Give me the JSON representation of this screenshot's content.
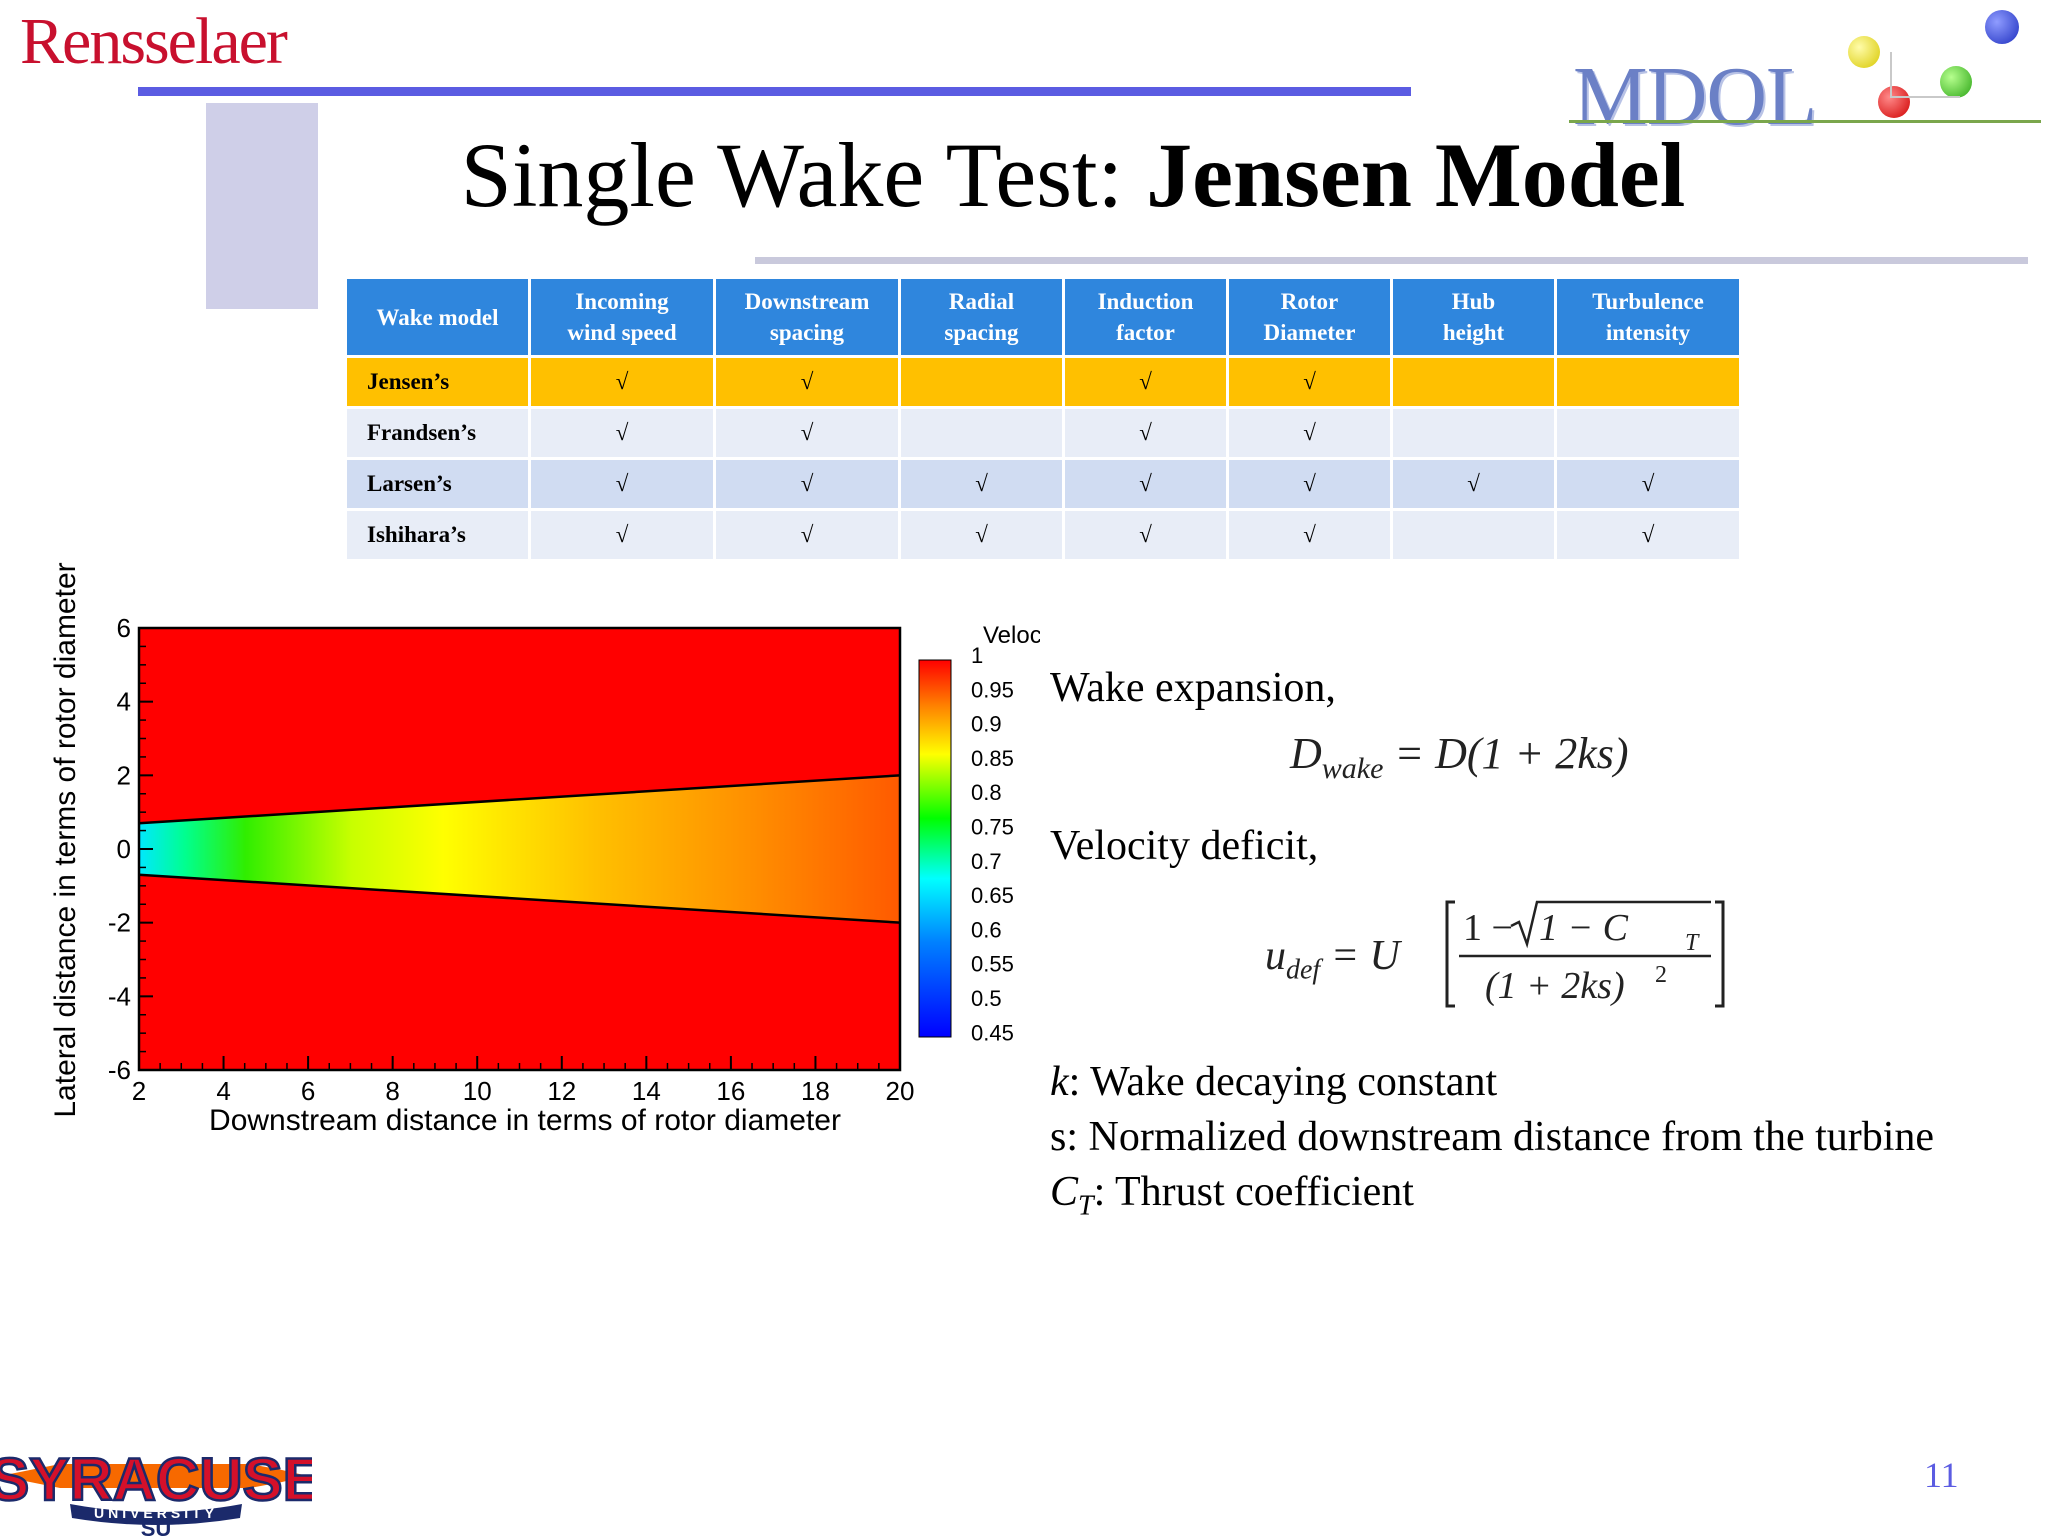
{
  "header": {
    "left_logo_text": "Rensselaer",
    "right_logo_text": "MDOL",
    "title_regular": "Single Wake Test: ",
    "title_bold": "Jensen Model"
  },
  "table": {
    "headers": [
      [
        "Wake model"
      ],
      [
        "Incoming",
        "wind speed"
      ],
      [
        "Downstream",
        "spacing"
      ],
      [
        "Radial",
        "spacing"
      ],
      [
        "Induction",
        "factor"
      ],
      [
        "Rotor",
        "Diameter"
      ],
      [
        "Hub",
        "height"
      ],
      [
        "Turbulence",
        "intensity"
      ]
    ],
    "rows": [
      {
        "model": "Jensen’s",
        "cells": [
          "√",
          "√",
          "",
          "√",
          "√",
          "",
          ""
        ]
      },
      {
        "model": "Frandsen’s",
        "cells": [
          "√",
          "√",
          "",
          "√",
          "√",
          "",
          ""
        ]
      },
      {
        "model": "Larsen’s",
        "cells": [
          "√",
          "√",
          "√",
          "√",
          "√",
          "√",
          "√"
        ]
      },
      {
        "model": "Ishihara’s",
        "cells": [
          "√",
          "√",
          "√",
          "√",
          "√",
          "",
          "√"
        ]
      }
    ]
  },
  "chart_data": {
    "type": "heatmap",
    "xlabel": "Downstream distance in terms of rotor diameter",
    "ylabel": "Lateral distance in terms of rotor diameter",
    "xlim": [
      2,
      20
    ],
    "ylim": [
      -6,
      6
    ],
    "x_ticks": [
      "2",
      "4",
      "6",
      "8",
      "10",
      "12",
      "14",
      "16",
      "18",
      "20"
    ],
    "y_ticks": [
      "6",
      "4",
      "2",
      "0",
      "-2",
      "-4",
      "-6"
    ],
    "colorbar_title": "Velocity",
    "colorbar_ticks": [
      "1",
      "0.95",
      "0.9",
      "0.85",
      "0.8",
      "0.75",
      "0.7",
      "0.65",
      "0.6",
      "0.55",
      "0.5",
      "0.45"
    ],
    "colorbar_range": [
      0.45,
      1
    ],
    "freestream_velocity": 1,
    "wake_boundary": {
      "x": [
        2,
        20
      ],
      "upper_y": [
        0.7,
        2.0
      ],
      "lower_y": [
        -0.7,
        -2.0
      ]
    },
    "wake_centerline_velocity": {
      "x": [
        2,
        4,
        7,
        10,
        14,
        20
      ],
      "values": [
        0.7,
        0.78,
        0.82,
        0.86,
        0.88,
        0.93
      ]
    }
  },
  "equations": {
    "wake_expansion_label": "Wake expansion,",
    "eq1_lhs": "D",
    "eq1_lhs_sub": "wake",
    "eq1_rhs": "= D(1 + 2ks)",
    "velocity_deficit_label": "Velocity deficit,",
    "eq2_lhs": "u",
    "eq2_lhs_sub": "def",
    "eq2_eq": "= U",
    "eq2_num_lead": "1 −",
    "eq2_num_root": "1 − C",
    "eq2_num_sub": "T",
    "eq2_den": "(1 + 2ks)",
    "eq2_den_sup": "2"
  },
  "definitions": {
    "k_symbol": "k",
    "k_text": ": Wake decaying constant",
    "s_text": "s: Normalized downstream distance from the turbine",
    "ct_symbol": "C",
    "ct_sub": "T",
    "ct_text": ": Thrust coefficient"
  },
  "footer": {
    "university_logo_text": "SYRACUSE",
    "university_sub_text": "UNIVERSITY",
    "university_mark": "SU",
    "page_number": "11"
  }
}
